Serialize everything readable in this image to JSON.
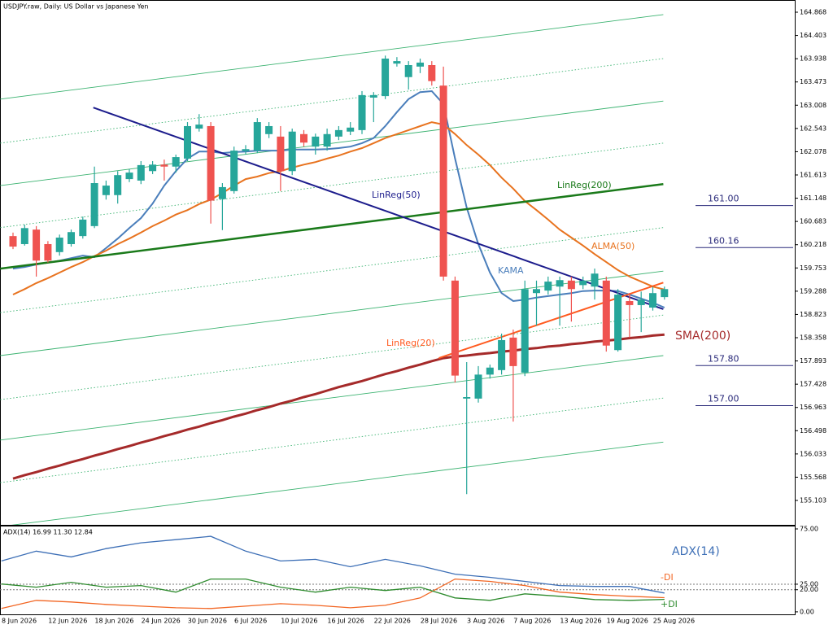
{
  "chart_data": [
    {
      "type": "candlestick",
      "title": "USDJPY.raw, Daily:  US Dollar vs Japanese Yen",
      "categories": [
        "8 Jun 2026",
        null,
        null,
        null,
        "12 Jun 2026",
        null,
        null,
        null,
        "18 Jun 2026",
        null,
        null,
        null,
        "24 Jun 2026",
        null,
        null,
        null,
        "30 Jun 2026",
        null,
        null,
        null,
        "6 Jul 2026",
        null,
        null,
        null,
        "10 Jul 2026",
        null,
        null,
        null,
        "16 Jul 2026",
        null,
        null,
        null,
        "22 Jul 2026",
        null,
        null,
        null,
        "28 Jul 2026",
        null,
        null,
        null,
        "3 Aug 2026",
        null,
        null,
        null,
        "7 Aug 2026",
        null,
        null,
        null,
        "13 Aug 2026",
        null,
        null,
        null,
        "19 Aug 2026",
        null,
        null,
        null,
        "25 Aug 2026"
      ],
      "open": [
        160.39,
        160.23,
        160.52,
        160.23,
        160.07,
        160.23,
        160.39,
        160.59,
        161.21,
        161.21,
        161.53,
        161.5,
        161.69,
        161.82,
        161.78,
        161.94,
        162.54,
        162.59,
        161.13,
        161.29,
        162.09,
        162.1,
        162.43,
        162.38,
        161.69,
        162.43,
        162.18,
        162.18,
        162.38,
        162.48,
        162.51,
        163.16,
        163.19,
        163.84,
        163.57,
        163.78,
        163.81,
        163.4,
        159.5,
        157.14,
        157.14,
        157.62,
        157.71,
        158.36,
        157.66,
        159.25,
        159.3,
        159.38,
        159.5,
        159.41,
        159.38,
        159.5,
        158.11,
        159.09,
        159.01,
        158.96,
        159.17
      ],
      "high": [
        160.46,
        160.62,
        160.59,
        160.29,
        160.42,
        160.52,
        160.78,
        161.78,
        161.5,
        161.69,
        161.73,
        161.89,
        161.89,
        161.92,
        162.02,
        162.67,
        162.83,
        162.67,
        161.45,
        162.18,
        162.21,
        162.75,
        162.67,
        162.59,
        162.54,
        162.51,
        162.44,
        162.54,
        162.59,
        162.67,
        163.29,
        163.27,
        164.0,
        163.97,
        163.89,
        163.94,
        163.89,
        163.78,
        159.58,
        157.87,
        157.79,
        157.82,
        158.44,
        158.52,
        159.5,
        159.5,
        159.58,
        159.58,
        159.58,
        159.58,
        159.74,
        159.58,
        159.33,
        159.25,
        159.28,
        159.38,
        159.38
      ],
      "low": [
        160.13,
        160.2,
        159.58,
        159.86,
        160.0,
        160.18,
        160.34,
        160.55,
        161.12,
        161.04,
        161.47,
        161.43,
        161.63,
        161.5,
        161.66,
        161.89,
        162.48,
        160.64,
        160.51,
        161.24,
        162.02,
        162.05,
        162.35,
        161.29,
        161.61,
        162.18,
        162.02,
        162.1,
        162.31,
        162.41,
        162.43,
        162.67,
        163.13,
        163.78,
        163.32,
        163.65,
        163.4,
        159.5,
        157.46,
        155.23,
        157.06,
        157.54,
        157.62,
        156.68,
        157.59,
        158.6,
        159.22,
        158.6,
        158.68,
        159.33,
        159.12,
        158.08,
        158.08,
        158.36,
        158.47,
        158.9,
        159.12
      ],
      "close": [
        160.18,
        160.55,
        159.9,
        159.9,
        160.36,
        160.47,
        160.72,
        161.45,
        161.4,
        161.61,
        161.66,
        161.81,
        161.82,
        161.78,
        161.97,
        162.59,
        162.62,
        161.1,
        161.37,
        162.1,
        162.13,
        162.67,
        162.59,
        161.69,
        162.48,
        162.26,
        162.38,
        162.43,
        162.51,
        162.56,
        163.21,
        163.21,
        163.94,
        163.89,
        163.81,
        163.86,
        163.49,
        159.58,
        157.6,
        157.17,
        157.62,
        157.76,
        158.31,
        157.79,
        159.33,
        159.33,
        159.48,
        159.51,
        159.33,
        159.5,
        159.64,
        158.2,
        159.22,
        159.01,
        159.12,
        159.25,
        159.33
      ],
      "up_color": "#26a69a",
      "down_color": "#ef5350",
      "ylim": [
        154.615,
        165.112
      ],
      "yticks": [
        164.868,
        164.403,
        163.938,
        163.473,
        163.008,
        162.543,
        162.078,
        161.613,
        161.148,
        160.683,
        160.218,
        159.753,
        159.288,
        158.823,
        158.358,
        157.893,
        157.428,
        156.963,
        156.498,
        156.033,
        155.568,
        155.103
      ],
      "series": [
        {
          "name": "KAMA",
          "color": "#4a7ebb",
          "values": [
            159.74,
            159.77,
            159.82,
            159.86,
            159.9,
            159.95,
            160.0,
            159.97,
            160.15,
            160.34,
            160.55,
            160.75,
            161.04,
            161.4,
            161.69,
            161.94,
            162.08,
            162.08,
            162.05,
            162.07,
            162.08,
            162.1,
            162.1,
            162.1,
            162.12,
            162.12,
            162.12,
            162.13,
            162.15,
            162.18,
            162.25,
            162.35,
            162.59,
            162.87,
            163.13,
            163.27,
            163.29,
            163.03,
            161.94,
            160.96,
            160.23,
            159.66,
            159.25,
            159.09,
            159.12,
            159.16,
            159.19,
            159.22,
            159.25,
            159.29,
            159.3,
            159.3,
            159.29,
            159.22,
            159.14,
            159.06,
            158.96
          ]
        },
        {
          "name": "ALMA(50)",
          "color": "#e8731f",
          "values": [
            159.22,
            159.33,
            159.45,
            159.55,
            159.66,
            159.77,
            159.87,
            159.99,
            160.1,
            160.23,
            160.34,
            160.46,
            160.59,
            160.7,
            160.82,
            160.91,
            161.03,
            161.12,
            161.25,
            161.4,
            161.53,
            161.58,
            161.65,
            161.69,
            161.76,
            161.82,
            161.87,
            161.94,
            162.0,
            162.08,
            162.15,
            162.25,
            162.35,
            162.43,
            162.51,
            162.59,
            162.67,
            162.62,
            162.43,
            162.21,
            162.02,
            161.81,
            161.56,
            161.34,
            161.09,
            160.91,
            160.72,
            160.52,
            160.36,
            160.2,
            160.03,
            159.87,
            159.71,
            159.58,
            159.48,
            159.38,
            159.32
          ]
        },
        {
          "name": "SMA(200)",
          "color": "#a52a2a",
          "values": [
            155.54,
            155.61,
            155.67,
            155.74,
            155.8,
            155.87,
            155.93,
            156.0,
            156.06,
            156.13,
            156.19,
            156.26,
            156.32,
            156.39,
            156.45,
            156.52,
            156.58,
            156.65,
            156.71,
            156.78,
            156.84,
            156.91,
            156.97,
            157.04,
            157.1,
            157.17,
            157.23,
            157.3,
            157.37,
            157.43,
            157.49,
            157.56,
            157.63,
            157.69,
            157.76,
            157.82,
            157.89,
            157.95,
            157.98,
            158.0,
            158.03,
            158.05,
            158.08,
            158.1,
            158.13,
            158.15,
            158.18,
            158.2,
            158.23,
            158.25,
            158.28,
            158.3,
            158.32,
            158.35,
            158.37,
            158.4,
            158.42
          ]
        }
      ],
      "trendlines": [
        {
          "name": "LinReg(200)",
          "color": "#1a7a1a",
          "x": [
            -1.1,
            55.9
          ],
          "values": [
            159.74,
            161.43
          ]
        },
        {
          "name": "LinReg(50)",
          "color": "#1c1c8c",
          "x": [
            6.9,
            55.9
          ],
          "values": [
            162.96,
            158.93
          ]
        },
        {
          "name": "LinReg(20)",
          "color": "#ff5a1f",
          "x": [
            36.6,
            55.9
          ],
          "values": [
            157.95,
            159.46
          ]
        }
      ],
      "channel_lines": [
        {
          "x": [
            -1.1,
            55.9
          ],
          "values": [
            163.13,
            164.82
          ],
          "style": "solid"
        },
        {
          "x": [
            -1.1,
            55.9
          ],
          "values": [
            162.25,
            163.94
          ],
          "style": "dotted"
        },
        {
          "x": [
            -1.1,
            55.9
          ],
          "values": [
            161.4,
            163.09
          ],
          "style": "solid"
        },
        {
          "x": [
            -1.1,
            55.9
          ],
          "values": [
            160.56,
            162.25
          ],
          "style": "dotted"
        },
        {
          "x": [
            -1.1,
            55.9
          ],
          "values": [
            158.86,
            160.56
          ],
          "style": "dotted"
        },
        {
          "x": [
            -1.1,
            55.9
          ],
          "values": [
            158.0,
            159.69
          ],
          "style": "solid"
        },
        {
          "x": [
            -1.1,
            55.9
          ],
          "values": [
            157.12,
            158.81
          ],
          "style": "dotted"
        },
        {
          "x": [
            -1.1,
            55.9
          ],
          "values": [
            156.31,
            158.0
          ],
          "style": "solid"
        },
        {
          "x": [
            -1.1,
            55.9
          ],
          "values": [
            155.46,
            157.15
          ],
          "style": "dotted"
        },
        {
          "x": [
            -1.1,
            55.9
          ],
          "values": [
            154.58,
            156.27
          ],
          "style": "solid"
        }
      ],
      "channel_color": "#3cb371",
      "levels": [
        {
          "value": 161,
          "label": "161.00"
        },
        {
          "value": 160.16,
          "label": "160.16"
        },
        {
          "value": 157.8,
          "label": "157.80"
        },
        {
          "value": 157,
          "label": "157.00"
        }
      ],
      "level_color": "#2a2a7a"
    },
    {
      "type": "line",
      "title": "ADX(14) 16.99 11.30 12.84",
      "x": [
        -1,
        2,
        5,
        8,
        11,
        14,
        17,
        20,
        23,
        26,
        29,
        32,
        35,
        38,
        41,
        44,
        47,
        50,
        53,
        56
      ],
      "ylim": [
        -3,
        77.2
      ],
      "yticks": [
        {
          "value": 75,
          "label": "75.00"
        },
        {
          "value": 25,
          "label": "25.00"
        },
        {
          "value": 20,
          "label": "20.00"
        },
        {
          "value": 0,
          "label": "0.00"
        }
      ],
      "levels": [
        25,
        20
      ],
      "series": [
        {
          "name": "ADX(14)",
          "color": "#3d6fb6",
          "values": [
            46.0,
            54.9,
            49.7,
            57.2,
            62.4,
            65.3,
            68.3,
            54.9,
            46.0,
            47.5,
            40.8,
            47.5,
            41.6,
            34.1,
            31.2,
            27.5,
            23.8,
            23.0,
            23.0,
            17.0
          ]
        },
        {
          "name": "-DI",
          "color": "#f26522",
          "values": [
            3.0,
            10.4,
            8.9,
            6.7,
            5.2,
            3.7,
            3.0,
            5.2,
            7.4,
            5.9,
            3.7,
            5.9,
            12.6,
            29.7,
            27.5,
            23.8,
            17.8,
            15.6,
            14.1,
            12.8
          ]
        },
        {
          "name": "+DI",
          "color": "#2e8b2e",
          "values": [
            25.2,
            22.3,
            26.7,
            22.3,
            23.8,
            17.8,
            29.7,
            29.7,
            22.3,
            17.8,
            22.3,
            19.3,
            22.3,
            12.6,
            10.4,
            16.3,
            14.1,
            11.1,
            10.4,
            11.3
          ]
        }
      ]
    }
  ]
}
